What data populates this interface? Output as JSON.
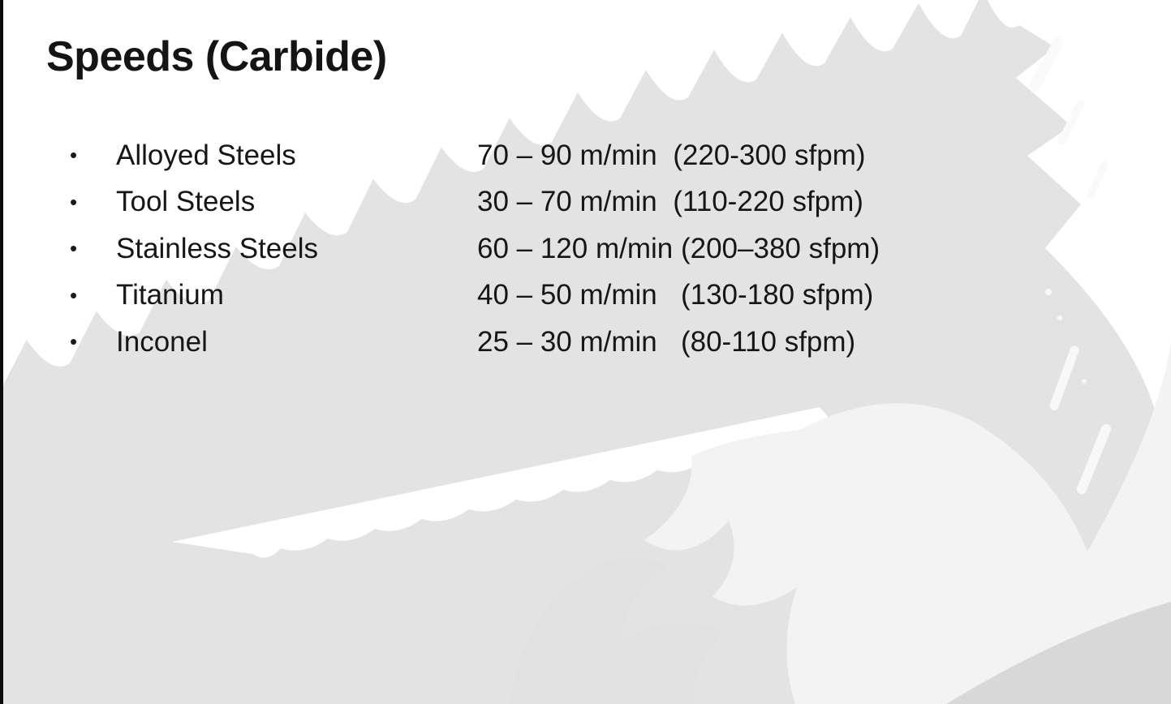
{
  "slide": {
    "title": "Speeds (Carbide)",
    "bullet_glyph": "•",
    "items": [
      {
        "material": "Alloyed Steels",
        "speed": "70 – 90 m/min  (220-300 sfpm)"
      },
      {
        "material": "Tool Steels",
        "speed": "30 – 70 m/min  (110-220 sfpm)"
      },
      {
        "material": "Stainless Steels",
        "speed": "60 – 120 m/min (200–380 sfpm)"
      },
      {
        "material": "Titanium",
        "speed": "40 – 50 m/min   (130-180 sfpm)"
      },
      {
        "material": "Inconel",
        "speed": "25 – 30 m/min   (80-110 sfpm)"
      }
    ]
  },
  "colors": {
    "text": "#141414",
    "background_white": "#ffffff",
    "blade_gray": "#e4e3e3",
    "blade_highlight": "#f4f3f3",
    "blade_shadow_gray": "#d9d8d8",
    "claw_gray": "#e2e1e1",
    "streak_white": "#fafafa",
    "edge_black": "#0c0c0c"
  }
}
